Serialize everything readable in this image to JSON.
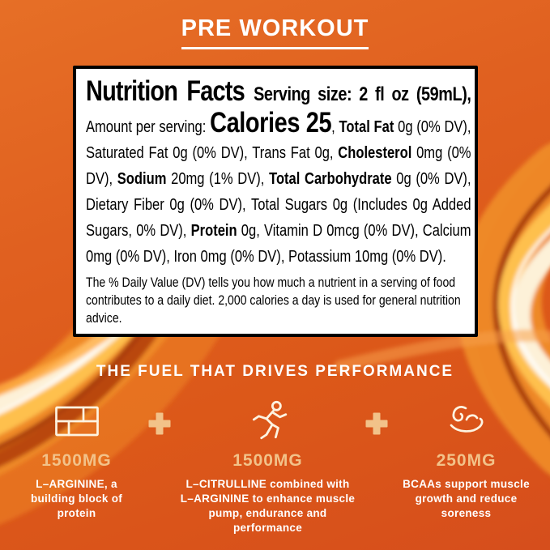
{
  "title": "PRE WORKOUT",
  "nutrition": {
    "segments": [
      {
        "text": "Nutrition Facts ",
        "style": "nf"
      },
      {
        "text": "Serving size: 2 fl oz (59mL), ",
        "style": "sv"
      },
      {
        "text": "Amount per serving: ",
        "style": "r"
      },
      {
        "text": "Calories 25",
        "style": "cal"
      },
      {
        "text": ", ",
        "style": "r"
      },
      {
        "text": "Total Fat",
        "style": "b"
      },
      {
        "text": " 0g (0% DV), Saturated Fat 0g (0% DV), Trans Fat 0g, ",
        "style": "r"
      },
      {
        "text": "Cholesterol",
        "style": "b"
      },
      {
        "text": " 0mg (0% DV), ",
        "style": "r"
      },
      {
        "text": "Sodium",
        "style": "b"
      },
      {
        "text": " 20mg (1% DV), ",
        "style": "r"
      },
      {
        "text": "Total Carbohydrate",
        "style": "b"
      },
      {
        "text": " 0g (0% DV), Dietary Fiber 0g (0% DV), Total Sugars 0g (Includes 0g Added Sugars, 0% DV), ",
        "style": "r"
      },
      {
        "text": "Protein",
        "style": "b"
      },
      {
        "text": " 0g, Vitamin D 0mcg (0% DV), Calcium 0mg (0% DV), Iron 0mg (0% DV), Potassium 10mg (0% DV).",
        "style": "r"
      }
    ],
    "footnote": "The % Daily Value (DV) tells you how much a nutrient in a serving of food contributes to a daily diet. 2,000 calories a day is used for general nutrition advice."
  },
  "fuel": {
    "heading": "THE FUEL THAT DRIVES PERFORMANCE",
    "columns": [
      {
        "icon": "bricks-icon",
        "amount": "1500MG",
        "description": "L–ARGININE, a building block of protein"
      },
      {
        "icon": "runner-icon",
        "amount": "1500MG",
        "description": "L–CITRULLINE combined with L–ARGININE to enhance muscle pump, endurance and performance"
      },
      {
        "icon": "bicep-icon",
        "amount": "250MG",
        "description": "BCAAs support muscle growth and reduce soreness"
      }
    ]
  },
  "colors": {
    "background_orange": "#DE5D1D",
    "accent_tan": "#F2C289",
    "text_white": "#FFFFFF",
    "label_black": "#000000",
    "swirl_gold": "#FFC34F",
    "swirl_cream": "#FDF1D8",
    "swirl_dark_red": "#A33508"
  }
}
